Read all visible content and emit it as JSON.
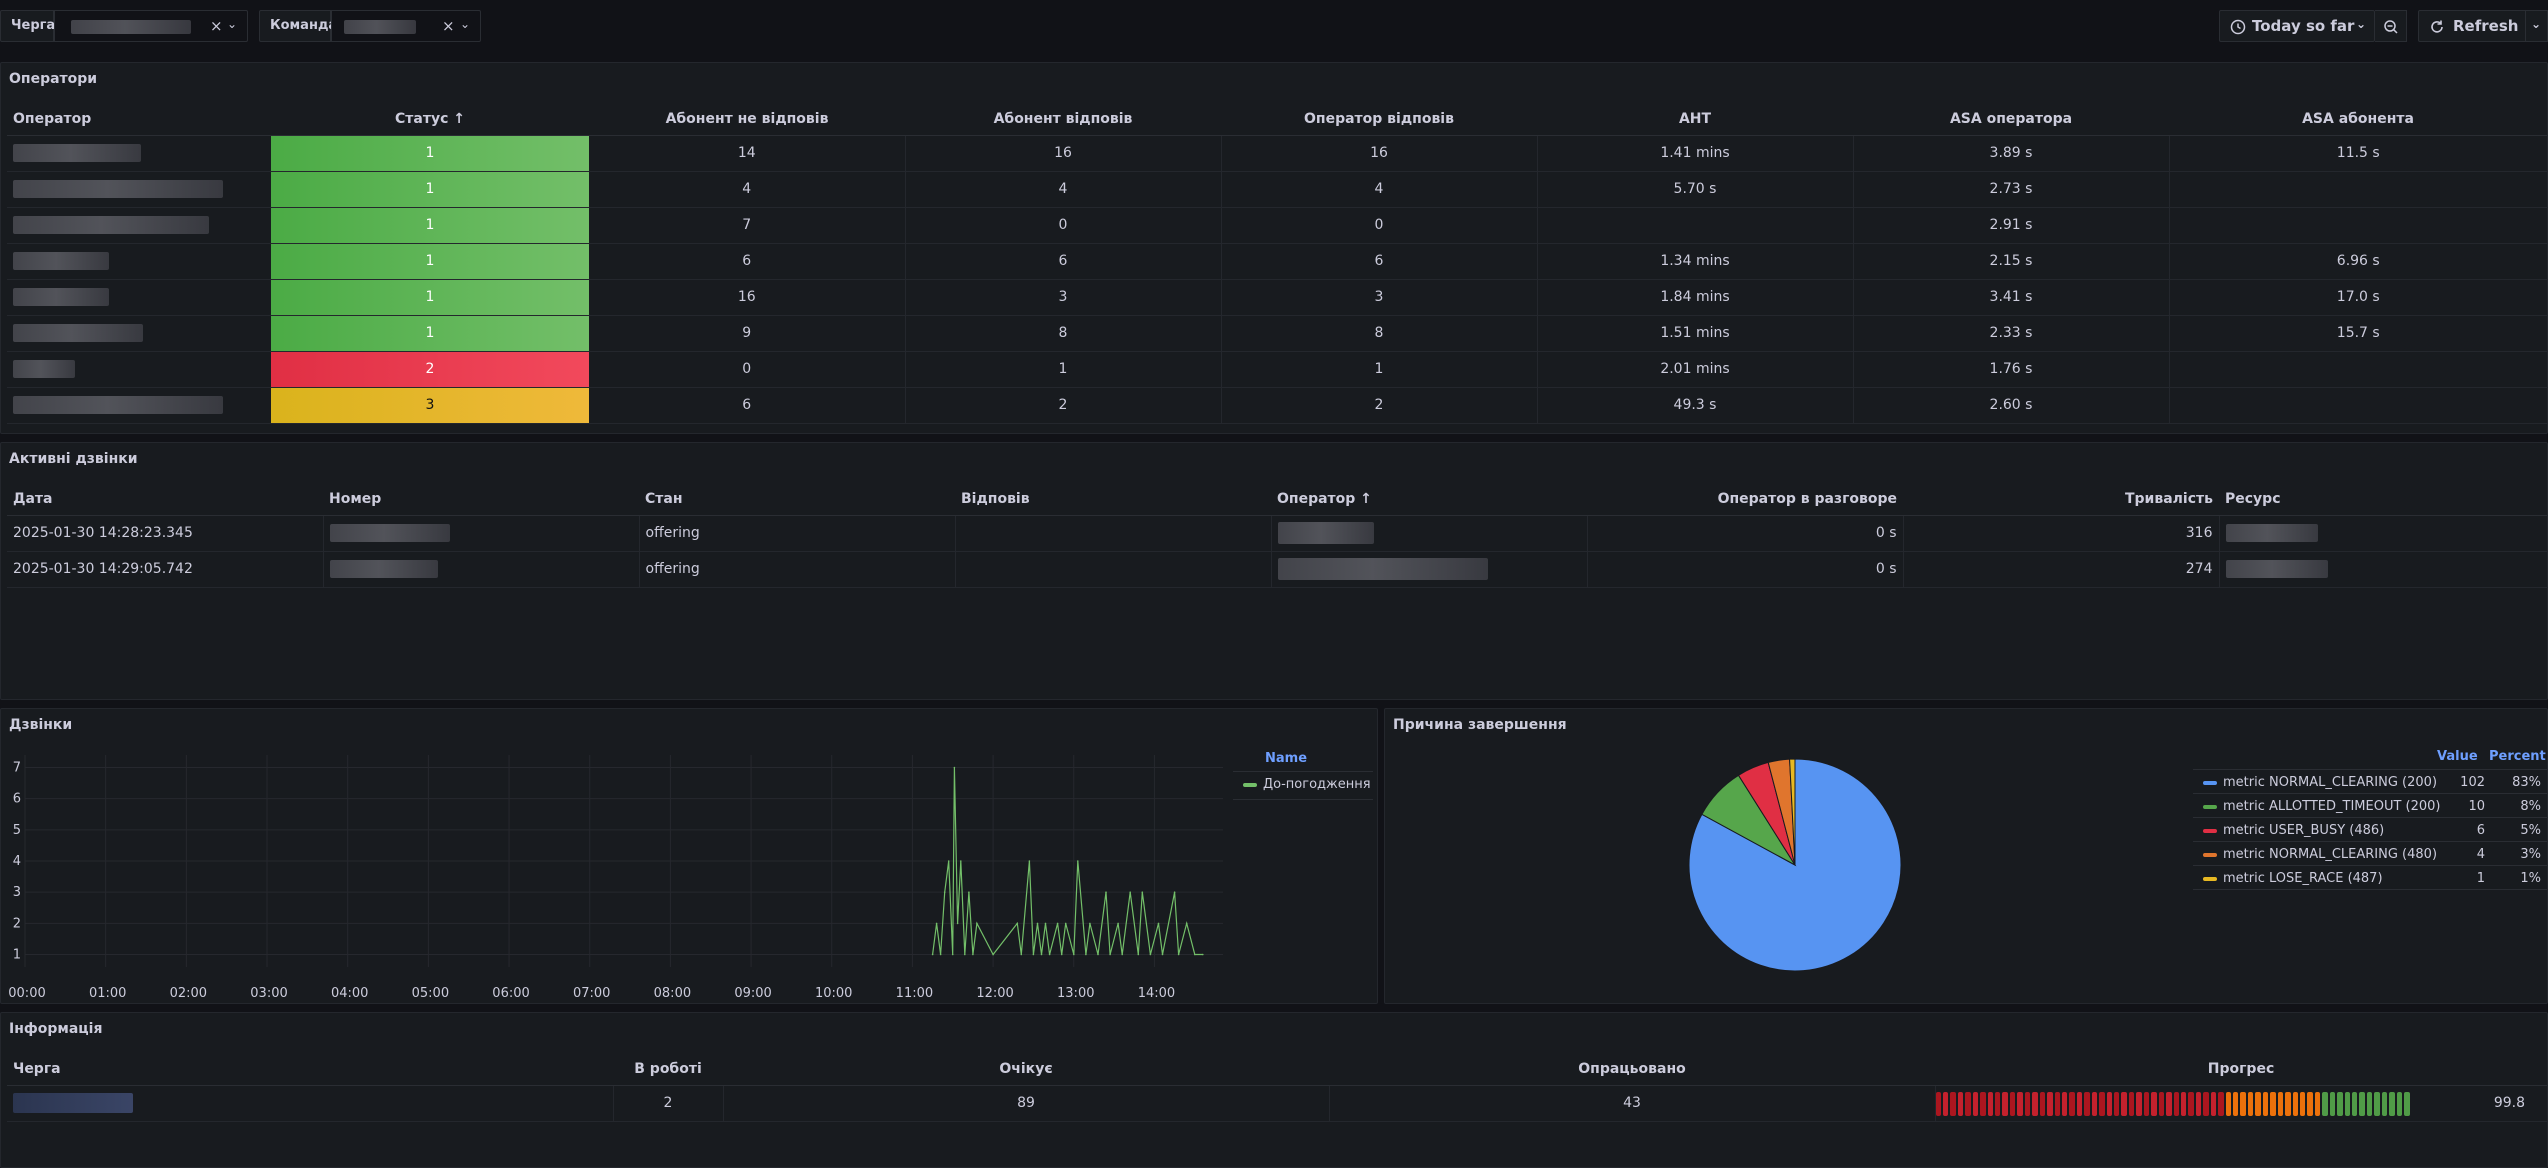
{
  "toolbar": {
    "queue_var_label": "Черга",
    "team_var_label": "Команда",
    "time_range": "Today so far",
    "refresh_label": "Refresh"
  },
  "operators_panel": {
    "title": "Оператори",
    "columns": [
      "Оператор",
      "Статус",
      "Абонент не відповів",
      "Абонент відповів",
      "Оператор відповів",
      "AHT",
      "ASA оператора",
      "ASA абонента"
    ],
    "rows": [
      {
        "status": "1",
        "no_answer": "14",
        "answered": "16",
        "op_answered": "16",
        "aht": "1.41 mins",
        "asa_op": "3.89 s",
        "asa_sub": "11.5 s"
      },
      {
        "status": "1",
        "no_answer": "4",
        "answered": "4",
        "op_answered": "4",
        "aht": "5.70 s",
        "asa_op": "2.73 s",
        "asa_sub": ""
      },
      {
        "status": "1",
        "no_answer": "7",
        "answered": "0",
        "op_answered": "0",
        "aht": "",
        "asa_op": "2.91 s",
        "asa_sub": ""
      },
      {
        "status": "1",
        "no_answer": "6",
        "answered": "6",
        "op_answered": "6",
        "aht": "1.34 mins",
        "asa_op": "2.15 s",
        "asa_sub": "6.96 s"
      },
      {
        "status": "1",
        "no_answer": "16",
        "answered": "3",
        "op_answered": "3",
        "aht": "1.84 mins",
        "asa_op": "3.41 s",
        "asa_sub": "17.0 s"
      },
      {
        "status": "1",
        "no_answer": "9",
        "answered": "8",
        "op_answered": "8",
        "aht": "1.51 mins",
        "asa_op": "2.33 s",
        "asa_sub": "15.7 s"
      },
      {
        "status": "2",
        "no_answer": "0",
        "answered": "1",
        "op_answered": "1",
        "aht": "2.01 mins",
        "asa_op": "1.76 s",
        "asa_sub": ""
      },
      {
        "status": "3",
        "no_answer": "6",
        "answered": "2",
        "op_answered": "2",
        "aht": "49.3 s",
        "asa_op": "2.60 s",
        "asa_sub": ""
      }
    ]
  },
  "active_calls_panel": {
    "title": "Активні дзвінки",
    "columns": [
      "Дата",
      "Номер",
      "Стан",
      "Відповів",
      "Оператор",
      "Оператор в разговоре",
      "Тривалість",
      "Ресурс"
    ],
    "rows": [
      {
        "date": "2025-01-30 14:28:23.345",
        "state": "offering",
        "answered": "",
        "in_talk": "0 s",
        "duration": "316"
      },
      {
        "date": "2025-01-30 14:29:05.742",
        "state": "offering",
        "answered": "",
        "in_talk": "0 s",
        "duration": "274"
      }
    ]
  },
  "calls_panel": {
    "title": "Дзвінки",
    "legend_header": "Name"
  },
  "reasons_panel": {
    "title": "Причина завершення",
    "legend_value_header": "Value",
    "legend_percent_header": "Percent"
  },
  "info_panel": {
    "title": "Інформація",
    "columns": [
      "Черга",
      "В роботі",
      "Очікує",
      "Опрацьовано",
      "Прогрес"
    ],
    "row": {
      "in_work": "2",
      "waiting": "89",
      "processed": "43",
      "progress": "99.8"
    }
  },
  "chart_data": [
    {
      "type": "line",
      "title": "Дзвінки",
      "x_ticks": [
        "00:00",
        "01:00",
        "02:00",
        "03:00",
        "04:00",
        "05:00",
        "06:00",
        "07:00",
        "08:00",
        "09:00",
        "10:00",
        "11:00",
        "12:00",
        "13:00",
        "14:00"
      ],
      "y_ticks": [
        "1",
        "2",
        "3",
        "4",
        "5",
        "6",
        "7"
      ],
      "ylim": [
        0.6,
        7.4
      ],
      "series": [
        {
          "name": "До-погодження",
          "color": "#73bf69",
          "points": [
            [
              11.25,
              1
            ],
            [
              11.3,
              2
            ],
            [
              11.35,
              1
            ],
            [
              11.4,
              3
            ],
            [
              11.45,
              4
            ],
            [
              11.5,
              1
            ],
            [
              11.52,
              7
            ],
            [
              11.56,
              2
            ],
            [
              11.6,
              4
            ],
            [
              11.65,
              1
            ],
            [
              11.7,
              3
            ],
            [
              11.75,
              1
            ],
            [
              11.8,
              2
            ],
            [
              12.0,
              1
            ],
            [
              12.3,
              2
            ],
            [
              12.35,
              1
            ],
            [
              12.45,
              4
            ],
            [
              12.5,
              1
            ],
            [
              12.55,
              2
            ],
            [
              12.6,
              1
            ],
            [
              12.65,
              2
            ],
            [
              12.7,
              1
            ],
            [
              12.8,
              2
            ],
            [
              12.85,
              1
            ],
            [
              12.9,
              2
            ],
            [
              13.0,
              1
            ],
            [
              13.05,
              4
            ],
            [
              13.15,
              1
            ],
            [
              13.2,
              2
            ],
            [
              13.3,
              1
            ],
            [
              13.4,
              3
            ],
            [
              13.45,
              1
            ],
            [
              13.55,
              2
            ],
            [
              13.6,
              1
            ],
            [
              13.7,
              3
            ],
            [
              13.8,
              1
            ],
            [
              13.85,
              3
            ],
            [
              13.95,
              1
            ],
            [
              14.05,
              2
            ],
            [
              14.1,
              1
            ],
            [
              14.25,
              3
            ],
            [
              14.3,
              1
            ],
            [
              14.4,
              2
            ],
            [
              14.5,
              1
            ],
            [
              14.6,
              1
            ]
          ]
        }
      ]
    },
    {
      "type": "pie",
      "title": "Причина завершення",
      "slices": [
        {
          "label": "metric NORMAL_CLEARING (200)",
          "value": 102,
          "percent": "83%",
          "color": "#5794f2"
        },
        {
          "label": "metric ALLOTTED_TIMEOUT (200)",
          "value": 10,
          "percent": "8%",
          "color": "#56a64b"
        },
        {
          "label": "metric USER_BUSY (486)",
          "value": 6,
          "percent": "5%",
          "color": "#e02f44"
        },
        {
          "label": "metric NORMAL_CLEARING (480)",
          "value": 4,
          "percent": "3%",
          "color": "#e0752d"
        },
        {
          "label": "metric LOSE_RACE (487)",
          "value": 1,
          "percent": "1%",
          "color": "#e8b923"
        }
      ]
    }
  ]
}
